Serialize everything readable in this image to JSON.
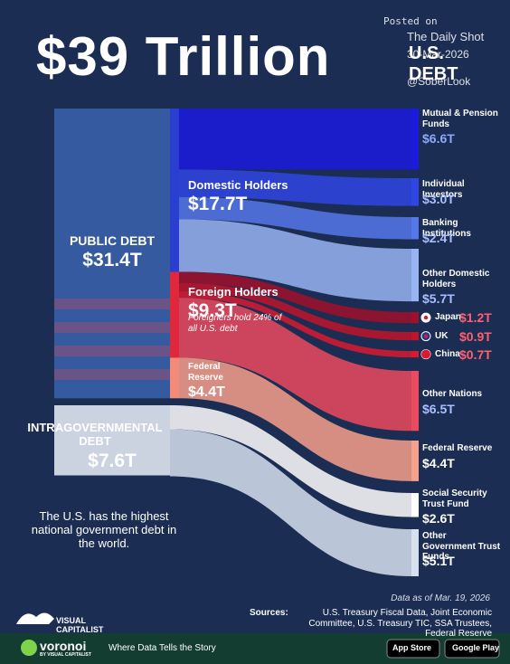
{
  "chart_data": {
    "type": "sankey",
    "title": "$39 Trillion",
    "subtitle": "U.S. DEBT",
    "watermark": [
      "Posted on",
      "The Daily Shot",
      "30-Mar-2026",
      "@SoberLook"
    ],
    "nodes": [
      {
        "name": "PUBLIC DEBT",
        "value": 31.4,
        "value_label": "$31.4T",
        "color": "#3a5fa8"
      },
      {
        "name": "INTRAGOVERNMENTAL DEBT",
        "value": 7.6,
        "value_label": "$7.6T",
        "color": "#dfe6f0"
      },
      {
        "name": "Domestic Holders",
        "value": 17.7,
        "value_label": "$17.7T",
        "color": "#2a3fd0"
      },
      {
        "name": "Foreign Holders",
        "value": 9.3,
        "value_label": "$9.3T",
        "color": "#e0283c"
      },
      {
        "name": "Federal Reserve",
        "value": 4.4,
        "value_label": "$4.4T",
        "color": "#f48a78"
      },
      {
        "name": "Mutual & Pension Funds",
        "value": 6.6,
        "value_label": "$6.6T",
        "color": "#1b1be0"
      },
      {
        "name": "Individual Investors",
        "value": 3.0,
        "value_label": "$3.0T",
        "color": "#2f45e4"
      },
      {
        "name": "Banking Institutions",
        "value": 2.4,
        "value_label": "$2.4T",
        "color": "#5577ea"
      },
      {
        "name": "Other Domestic Holders",
        "value": 5.7,
        "value_label": "$5.7T",
        "color": "#98b4f2"
      },
      {
        "name": "Japan",
        "value": 1.2,
        "value_label": "$1.2T",
        "color": "#a0102a"
      },
      {
        "name": "UK",
        "value": 0.9,
        "value_label": "$0.9T",
        "color": "#c0142a"
      },
      {
        "name": "China",
        "value": 0.7,
        "value_label": "$0.7T",
        "color": "#d81a30"
      },
      {
        "name": "Other Nations",
        "value": 6.5,
        "value_label": "$6.5T",
        "color": "#ec4a5e"
      },
      {
        "name": "Federal Reserve",
        "value": 4.4,
        "value_label": "$4.4T",
        "color": "#f7a08c"
      },
      {
        "name": "Social Security Trust Fund",
        "value": 2.6,
        "value_label": "$2.6T",
        "color": "#ffffff"
      },
      {
        "name": "Other Government Trust Funds",
        "value": 5.1,
        "value_label": "$5.1T",
        "color": "#d6e0ee"
      }
    ],
    "links": [
      {
        "source": 0,
        "target": 2,
        "value": 17.7
      },
      {
        "source": 0,
        "target": 3,
        "value": 9.3
      },
      {
        "source": 0,
        "target": 4,
        "value": 4.4
      },
      {
        "source": 2,
        "target": 5,
        "value": 6.6
      },
      {
        "source": 2,
        "target": 6,
        "value": 3.0
      },
      {
        "source": 2,
        "target": 7,
        "value": 2.4
      },
      {
        "source": 2,
        "target": 8,
        "value": 5.7
      },
      {
        "source": 3,
        "target": 9,
        "value": 1.2
      },
      {
        "source": 3,
        "target": 10,
        "value": 0.9
      },
      {
        "source": 3,
        "target": 11,
        "value": 0.7
      },
      {
        "source": 3,
        "target": 12,
        "value": 6.5
      },
      {
        "source": 4,
        "target": 13,
        "value": 4.4
      },
      {
        "source": 1,
        "target": 14,
        "value": 2.6
      },
      {
        "source": 1,
        "target": 15,
        "value": 5.1
      }
    ],
    "annotation": "Foreigners hold 24% of all U.S. debt",
    "callout": "The U.S. has the highest national government debt in the world.",
    "note": "Data as of Mar. 19, 2026",
    "sources_label": "Sources:",
    "sources": "U.S. Treasury Fiscal Data, Joint Economic Committee, U.S. Treasury TIC, SSA Trustees, Federal Reserve",
    "brand": "VISUAL CAPITALIST",
    "footer_brand": "voronoi",
    "footer_byline": "BY VISUAL CAPITALIST",
    "tagline": "Where Data Tells the Story",
    "app_store": "App Store",
    "google_play": "Google Play"
  }
}
